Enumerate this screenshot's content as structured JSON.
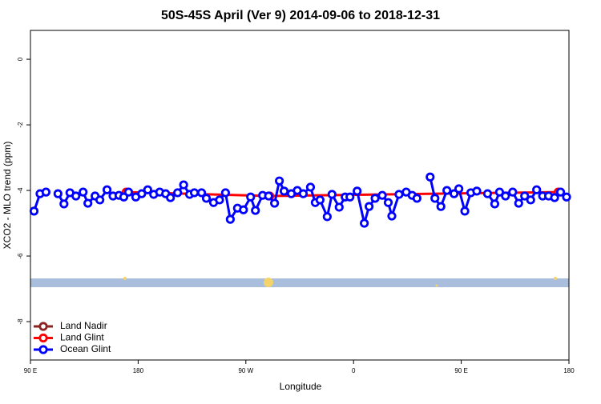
{
  "chart_data": {
    "type": "line",
    "title": "50S-45S April (Ver 9)   2014-09-06 to 2018-12-31",
    "xlabel": "Longitude",
    "ylabel": "XCO2 - MLO trend (ppm)",
    "xlim": [
      90,
      540
    ],
    "xticks": [
      {
        "value": 90,
        "label": "90 E"
      },
      {
        "value": 180,
        "label": "180"
      },
      {
        "value": 270,
        "label": "90 W"
      },
      {
        "value": 360,
        "label": "0"
      },
      {
        "value": 450,
        "label": "90 E"
      },
      {
        "value": 540,
        "label": "180"
      }
    ],
    "ylim": [
      -9.17,
      0.88
    ],
    "yticks": [
      0,
      -2,
      -4,
      -6,
      -8
    ],
    "legend": "bottom-left",
    "series": [
      {
        "name": "Land Nadir",
        "color": "#8b2323",
        "x": [],
        "values": []
      },
      {
        "name": "Land Glint",
        "color": "#ff0000",
        "x": [
          170,
          290,
          531
        ],
        "values": [
          -4.05,
          -4.17,
          -4.05
        ]
      },
      {
        "name": "Ocean Glint",
        "color": "#0000ff",
        "x": [
          93,
          98,
          103,
          null,
          113,
          118,
          123,
          128,
          134,
          138,
          144,
          148,
          154,
          159,
          164,
          168,
          172,
          178,
          183,
          188,
          193,
          198,
          203,
          207,
          213,
          218,
          223,
          227,
          233,
          237,
          243,
          248,
          253,
          257,
          263,
          268,
          274,
          278,
          284,
          289,
          294,
          298,
          302,
          308,
          313,
          318,
          324,
          328,
          332,
          338,
          342,
          348,
          353,
          357,
          363,
          369,
          373,
          378,
          384,
          389,
          392,
          398,
          404,
          409,
          413,
          null,
          424,
          428,
          433,
          438,
          444,
          448,
          453,
          458,
          463,
          null,
          472,
          478,
          482,
          487,
          493,
          498,
          503,
          508,
          513,
          518,
          523,
          528,
          533,
          538
        ],
        "values": [
          -4.63,
          -4.1,
          -4.05,
          null,
          -4.1,
          -4.41,
          -4.07,
          -4.17,
          -4.05,
          -4.39,
          -4.17,
          -4.29,
          -3.98,
          -4.17,
          -4.15,
          -4.2,
          -4.05,
          -4.2,
          -4.1,
          -3.98,
          -4.12,
          -4.05,
          -4.1,
          -4.22,
          -4.07,
          -3.83,
          -4.12,
          -4.07,
          -4.07,
          -4.24,
          -4.37,
          -4.29,
          -4.07,
          -4.88,
          -4.54,
          -4.59,
          -4.2,
          -4.61,
          -4.15,
          -4.17,
          -4.39,
          -3.71,
          -4.02,
          -4.1,
          -4.0,
          -4.1,
          -3.9,
          -4.37,
          -4.29,
          -4.8,
          -4.12,
          -4.51,
          -4.2,
          -4.2,
          -4.02,
          -5.0,
          -4.49,
          -4.24,
          -4.15,
          -4.37,
          -4.78,
          -4.12,
          -4.05,
          -4.15,
          -4.24,
          null,
          -3.59,
          -4.24,
          -4.49,
          -4.0,
          -4.1,
          -3.95,
          -4.63,
          -4.07,
          -4.02,
          null,
          -4.1,
          -4.41,
          -4.05,
          -4.17,
          -4.05,
          -4.39,
          -4.17,
          -4.29,
          -3.98,
          -4.17,
          -4.17,
          -4.22,
          -4.05,
          -4.2
        ]
      }
    ]
  }
}
